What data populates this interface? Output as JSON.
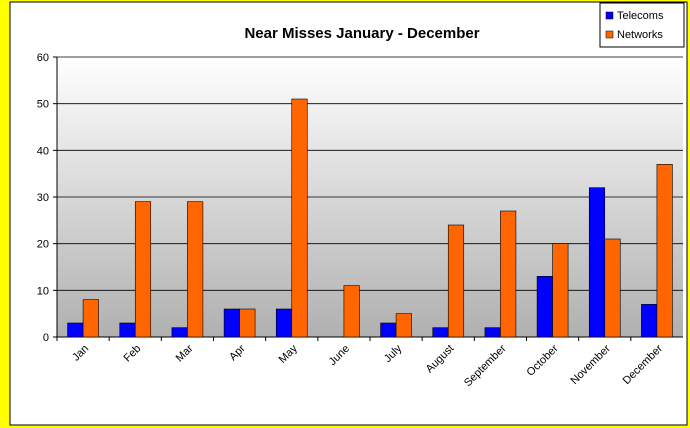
{
  "chart_data": {
    "type": "bar",
    "title": "Near Misses January - December",
    "categories": [
      "Jan",
      "Feb",
      "Mar",
      "Apr",
      "May",
      "June",
      "July",
      "August",
      "September",
      "October",
      "November",
      "December"
    ],
    "series": [
      {
        "name": "Telecoms",
        "color": "#0000ff",
        "values": [
          3,
          3,
          2,
          6,
          6,
          0,
          3,
          2,
          2,
          13,
          32,
          7
        ]
      },
      {
        "name": "Networks",
        "color": "#ff6600",
        "values": [
          8,
          29,
          29,
          6,
          51,
          11,
          5,
          24,
          27,
          20,
          21,
          37
        ]
      }
    ],
    "ylim": [
      0,
      60
    ],
    "yticks": [
      0,
      10,
      20,
      30,
      40,
      50,
      60
    ],
    "grid": true,
    "legend": "top-right"
  }
}
